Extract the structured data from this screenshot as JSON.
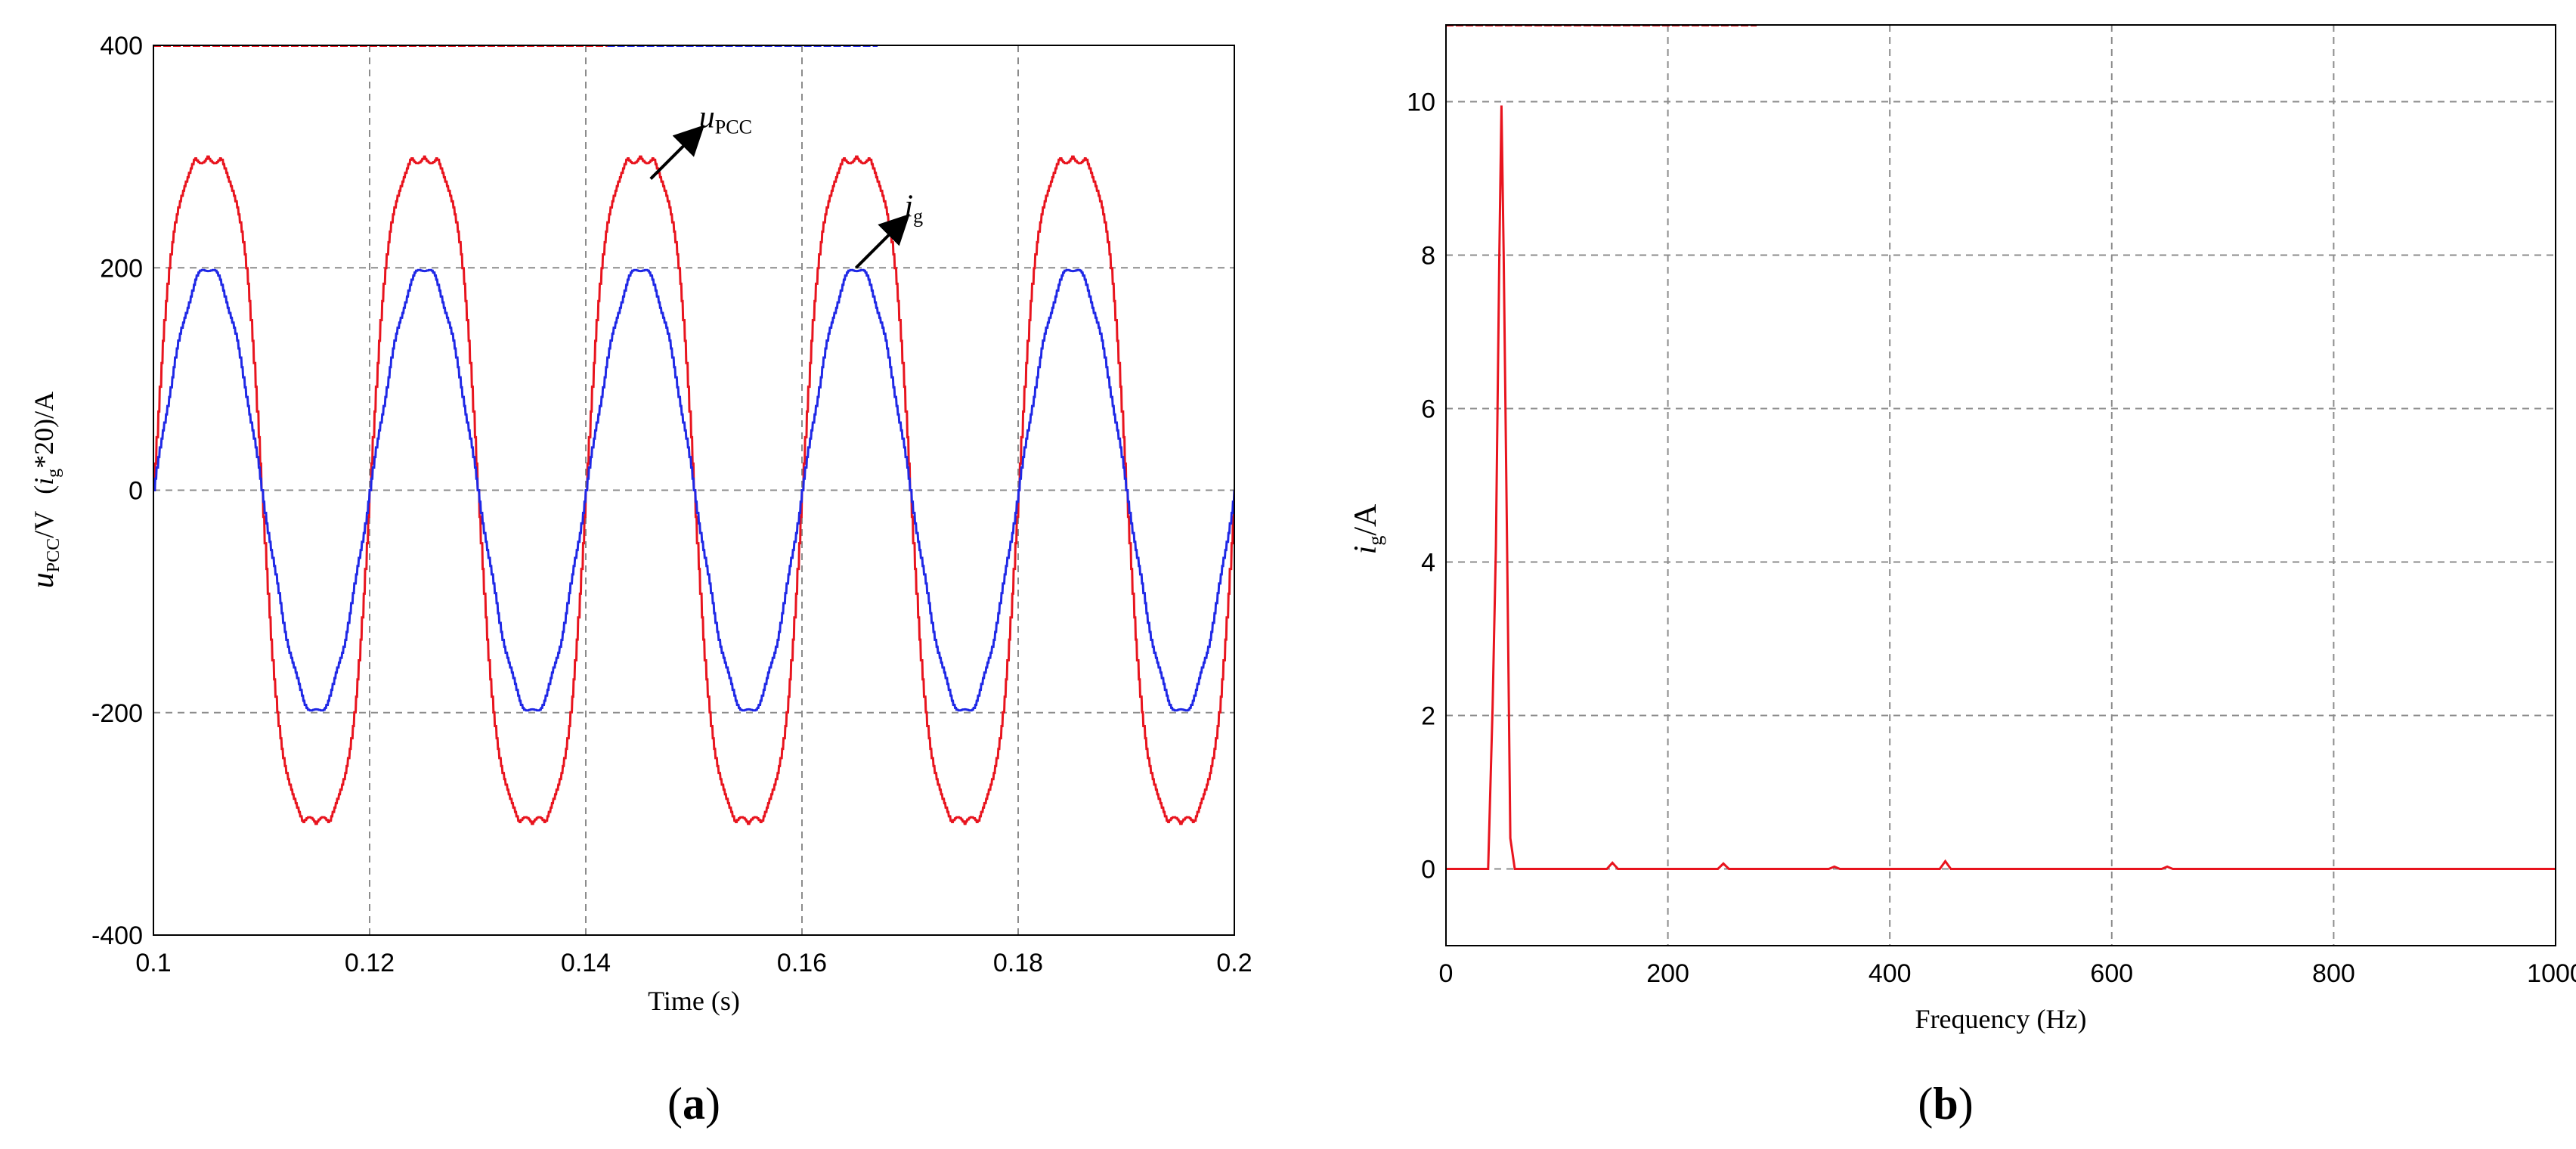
{
  "chart_data": [
    {
      "type": "line",
      "panel_label": "a",
      "xlabel": "Time (s)",
      "ylabel_parts": {
        "u": "u",
        "pcc": "PCC",
        "unit": "/V",
        "i_open": "(",
        "i": "i",
        "g": "g",
        "rest": "*20)/A"
      },
      "xlim": [
        0.1,
        0.2
      ],
      "ylim": [
        -400,
        400
      ],
      "x_ticks": [
        "0.1",
        "0.12",
        "0.14",
        "0.16",
        "0.18",
        "0.2"
      ],
      "y_ticks": [
        "400",
        "200",
        "0",
        "-200",
        "-400"
      ],
      "grid": true,
      "series": [
        {
          "name": "uPCC",
          "color": "#e8141e",
          "amplitude": 300,
          "frequency_hz": 50,
          "flat_top": 300
        },
        {
          "name": "ig",
          "color": "#1f28e6",
          "amplitude": 200,
          "frequency_hz": 50,
          "note_scale": 20
        }
      ],
      "annotations": [
        {
          "label_main": "u",
          "label_sub": "PCC",
          "target_x": 0.146,
          "target_y": 280
        },
        {
          "label_main": "i",
          "label_sub": "g",
          "target_x": 0.165,
          "target_y": 200
        }
      ]
    },
    {
      "type": "line",
      "panel_label": "b",
      "xlabel": "Frequency (Hz)",
      "ylabel_parts": {
        "i": "i",
        "g": "g",
        "unit": "/A"
      },
      "xlim": [
        0,
        1000
      ],
      "ylim": [
        -1,
        11
      ],
      "x_ticks": [
        "0",
        "200",
        "400",
        "600",
        "800",
        "1000"
      ],
      "y_ticks": [
        "10",
        "8",
        "6",
        "4",
        "2",
        "0"
      ],
      "grid": true,
      "series": [
        {
          "name": "ig",
          "color": "#e8141e",
          "x": [
            0,
            38,
            42,
            45,
            48,
            50,
            52,
            55,
            58,
            62,
            145,
            150,
            155,
            245,
            250,
            255,
            345,
            350,
            355,
            445,
            450,
            455,
            645,
            650,
            655,
            1000
          ],
          "y": [
            0,
            0,
            2.1,
            4.2,
            7.9,
            9.95,
            8.0,
            4.3,
            0.4,
            0,
            0,
            0.08,
            0,
            0,
            0.07,
            0,
            0,
            0.03,
            0,
            0,
            0.1,
            0,
            0,
            0.03,
            0,
            0
          ]
        }
      ]
    }
  ]
}
